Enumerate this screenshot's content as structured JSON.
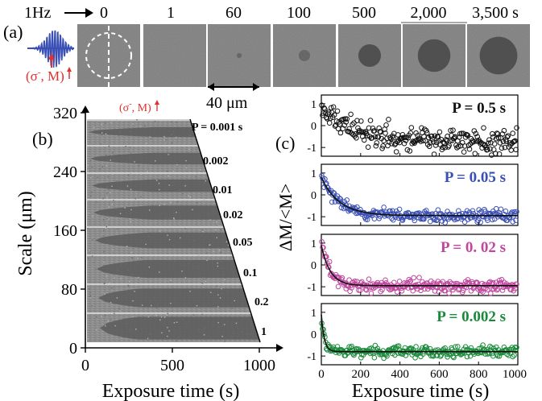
{
  "panel_a": {
    "tag": "(a)",
    "freq_label": "1Hz",
    "wave_label": [
      "(σ",
      "-",
      ", M",
      ")"
    ],
    "times": [
      "0",
      "1",
      "60",
      "100",
      "500",
      "2,000",
      "3,500 s"
    ],
    "blob_radius_fraction": [
      0,
      0,
      0.04,
      0.09,
      0.18,
      0.26,
      0.3
    ],
    "scale_label": "40 μm"
  },
  "panel_b": {
    "tag": "(b)",
    "top_label": [
      "(σ",
      "-",
      ", M",
      ")"
    ],
    "ylabel": "Scale (μm)",
    "xlabel": "Exposure time (s)",
    "yticks": [
      "0",
      "80",
      "160",
      "240",
      "320"
    ],
    "xticks": [
      "0",
      "500",
      "1000"
    ],
    "period_labels": [
      "P = 0.001 s",
      "0.002",
      "0.01",
      "0.02",
      "0.05",
      "0.1",
      "0.2",
      "1"
    ]
  },
  "panel_c": {
    "tag": "(c)",
    "ylabel": "ΔM/<M>",
    "xlabel": "Exposure time (s)",
    "xticks": [
      "0",
      "200",
      "400",
      "600",
      "800",
      "1000"
    ],
    "yticks": [
      "1",
      "0",
      "-1"
    ]
  },
  "chart_data": [
    {
      "type": "scatter",
      "title": "P = 0.5 s",
      "color": "#111111",
      "xlim": [
        0,
        1000
      ],
      "ylim": [
        -1.4,
        1.4
      ],
      "tau": 180,
      "y0": 0.75,
      "yinf": -0.75,
      "noise": 0.28,
      "has_fit": false
    },
    {
      "type": "scatter",
      "title": "P = 0.05 s",
      "color": "#3a4fb4",
      "xlim": [
        0,
        1000
      ],
      "ylim": [
        -1.4,
        1.4
      ],
      "tau": 90,
      "y0": 0.8,
      "yinf": -0.95,
      "noise": 0.14,
      "has_fit": true
    },
    {
      "type": "scatter",
      "title": "P = 0. 02 s",
      "color": "#c0469e",
      "xlim": [
        0,
        1000
      ],
      "ylim": [
        -1.4,
        1.4
      ],
      "tau": 45,
      "y0": 0.9,
      "yinf": -0.95,
      "noise": 0.15,
      "has_fit": true
    },
    {
      "type": "scatter",
      "title": "P = 0.002 s",
      "color": "#1a8a3a",
      "xlim": [
        0,
        1000
      ],
      "ylim": [
        -1.4,
        1.4
      ],
      "tau": 15,
      "y0": 0.9,
      "yinf": -0.8,
      "noise": 0.12,
      "has_fit": true
    }
  ]
}
